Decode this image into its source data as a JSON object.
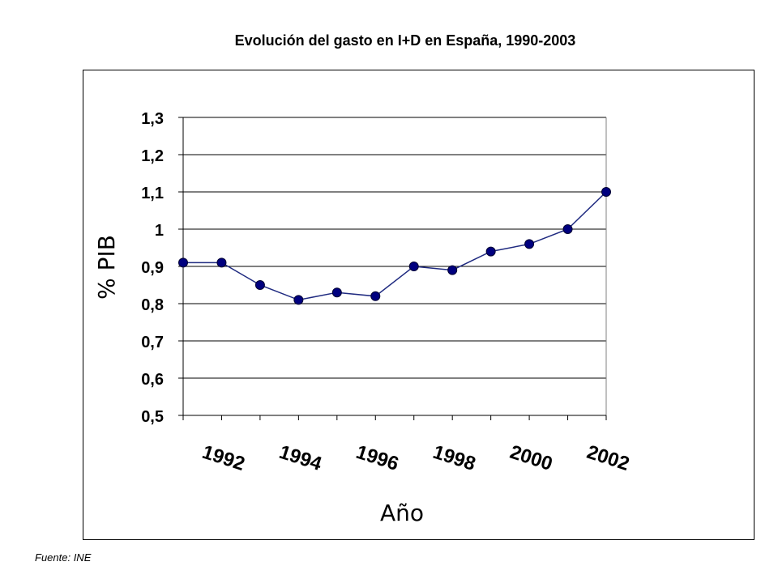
{
  "chart_data": {
    "type": "line",
    "title": "Evolución del gasto en I+D en España, 1990-2003",
    "xlabel": "Año",
    "ylabel": "% PIB",
    "ylim": [
      0.5,
      1.3
    ],
    "yticks": [
      {
        "value": 0.5,
        "label": "0,5"
      },
      {
        "value": 0.6,
        "label": "0,6"
      },
      {
        "value": 0.7,
        "label": "0,7"
      },
      {
        "value": 0.8,
        "label": "0,8"
      },
      {
        "value": 0.9,
        "label": "0,9"
      },
      {
        "value": 1.0,
        "label": "1"
      },
      {
        "value": 1.1,
        "label": "1,1"
      },
      {
        "value": 1.2,
        "label": "1,2"
      },
      {
        "value": 1.3,
        "label": "1,3"
      }
    ],
    "xticks": [
      1992,
      1994,
      1996,
      1998,
      2000,
      2002
    ],
    "x": [
      1991,
      1992,
      1993,
      1994,
      1995,
      1996,
      1997,
      1998,
      1999,
      2000,
      2001,
      2002
    ],
    "series": [
      {
        "values": [
          0.91,
          0.91,
          0.85,
          0.81,
          0.83,
          0.82,
          0.9,
          0.89,
          0.94,
          0.96,
          1.0,
          1.1
        ]
      }
    ],
    "grid": true,
    "colors": {
      "line": "#1f2a80",
      "marker": "#00007f",
      "grid": "#000000"
    }
  },
  "source": "Fuente: INE"
}
